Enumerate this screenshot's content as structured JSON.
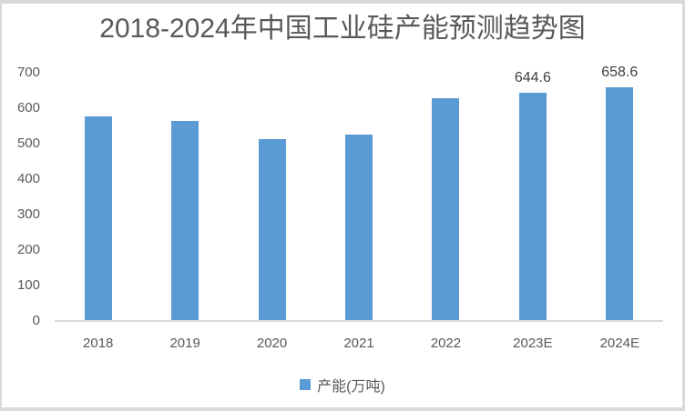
{
  "frame": {
    "border_color": "#d9d9d9"
  },
  "chart_data": {
    "type": "bar",
    "title": "2018-2024年中国工业硅产能预测趋势图",
    "categories": [
      "2018",
      "2019",
      "2020",
      "2021",
      "2022",
      "2023E",
      "2024E"
    ],
    "series": [
      {
        "name": "产能(万吨)",
        "values": [
          576,
          563,
          514,
          525,
          627,
          644.6,
          658.6
        ]
      }
    ],
    "data_labels": [
      null,
      null,
      null,
      null,
      null,
      "644.6",
      "658.6"
    ],
    "xlabel": "",
    "ylabel": "",
    "ylim": [
      0,
      700
    ],
    "yticks": [
      0,
      100,
      200,
      300,
      400,
      500,
      600,
      700
    ],
    "grid": "off",
    "legend_position": "bottom",
    "bar_color": "#5b9bd5",
    "axis_color": "#d9d9d9",
    "text_color": "#595959",
    "data_label_color": "#404040"
  }
}
